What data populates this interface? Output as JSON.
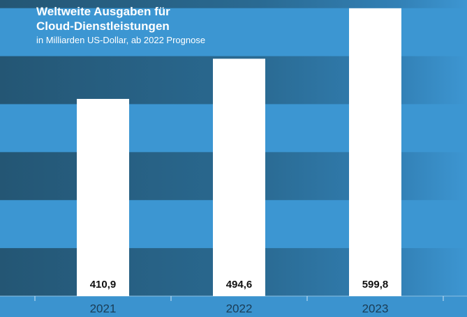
{
  "chart_data": {
    "type": "bar",
    "title": "Weltweite Ausgaben für Cloud-Dienstleistungen",
    "subtitle": "in Milliarden US-Dollar, ab 2022 Prognose",
    "categories": [
      "2021",
      "2022",
      "2023"
    ],
    "values": [
      410.9,
      494.6,
      599.8
    ],
    "value_labels": [
      "410,9",
      "494,6",
      "599,8"
    ],
    "color": "#ffffff",
    "ylim": [
      0,
      617
    ],
    "yticks": [
      0,
      100,
      200,
      300,
      400,
      500,
      600
    ],
    "grid": "bands"
  }
}
